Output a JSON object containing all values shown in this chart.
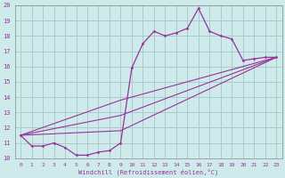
{
  "xlabel": "Windchill (Refroidissement éolien,°C)",
  "xlim": [
    -0.5,
    23.5
  ],
  "ylim": [
    10,
    20
  ],
  "xticks": [
    0,
    1,
    2,
    3,
    4,
    5,
    6,
    7,
    8,
    9,
    10,
    11,
    12,
    13,
    14,
    15,
    16,
    17,
    18,
    19,
    20,
    21,
    22,
    23
  ],
  "yticks": [
    10,
    11,
    12,
    13,
    14,
    15,
    16,
    17,
    18,
    19,
    20
  ],
  "background_color": "#ceeaea",
  "grid_color": "#a8cccc",
  "line_color": "#993399",
  "series_main": {
    "x": [
      0,
      1,
      2,
      3,
      4,
      5,
      6,
      7,
      8,
      9,
      10,
      11,
      12,
      13,
      14,
      15,
      16,
      17,
      18,
      19,
      20,
      21,
      22,
      23
    ],
    "y": [
      11.5,
      10.8,
      10.8,
      11.0,
      10.7,
      10.2,
      10.2,
      10.4,
      10.5,
      11.0,
      15.9,
      17.5,
      18.3,
      18.0,
      18.2,
      18.5,
      19.8,
      18.3,
      18.0,
      17.8,
      16.4,
      16.5,
      16.6,
      16.6
    ]
  },
  "series_linear": [
    {
      "x": [
        0,
        23
      ],
      "y": [
        11.5,
        16.6
      ]
    },
    {
      "x": [
        0,
        23
      ],
      "y": [
        11.5,
        16.6
      ]
    },
    {
      "x": [
        0,
        23
      ],
      "y": [
        11.5,
        16.6
      ]
    }
  ],
  "linear_waypoints": [
    {
      "x": [
        0,
        9,
        23
      ],
      "y": [
        11.5,
        13.8,
        16.6
      ]
    },
    {
      "x": [
        0,
        9,
        23
      ],
      "y": [
        11.5,
        12.8,
        16.6
      ]
    },
    {
      "x": [
        0,
        9,
        23
      ],
      "y": [
        11.5,
        11.8,
        16.6
      ]
    }
  ]
}
